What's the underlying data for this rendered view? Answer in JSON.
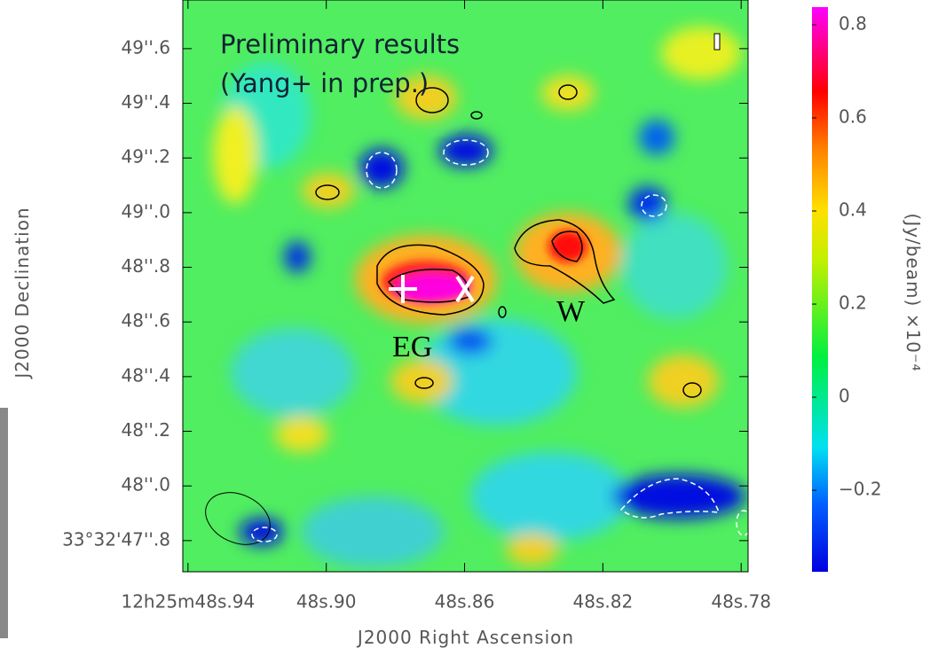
{
  "chart_data": {
    "type": "image-map",
    "xlabel": "J2000 Right Ascension",
    "ylabel": "J2000 Declination",
    "colorbar_label": "(Jy/beam)  ×10⁻⁴",
    "annotations": [
      "Preliminary results",
      "(Yang+ in prep.)",
      "EG",
      "W"
    ],
    "xlim": [
      48.9415,
      48.778
    ],
    "xticks": [
      {
        "value": 48.94,
        "label": "12h25m48s.94"
      },
      {
        "value": 48.9,
        "label": "48s.90"
      },
      {
        "value": 48.86,
        "label": "48s.86"
      },
      {
        "value": 48.82,
        "label": "48s.82"
      },
      {
        "value": 48.78,
        "label": "48s.78"
      }
    ],
    "ylim": [
      47.686,
      49.778
    ],
    "yticks": [
      {
        "value": 47.8,
        "label": "33°32'47''.8"
      },
      {
        "value": 48.0,
        "label": "48''.0"
      },
      {
        "value": 48.2,
        "label": "48''.2"
      },
      {
        "value": 48.4,
        "label": "48''.4"
      },
      {
        "value": 48.6,
        "label": "48''.6"
      },
      {
        "value": 48.8,
        "label": "48''.8"
      },
      {
        "value": 49.0,
        "label": "49''.0"
      },
      {
        "value": 49.2,
        "label": "49''.2"
      },
      {
        "value": 49.4,
        "label": "49''.4"
      },
      {
        "value": 49.6,
        "label": "49''.6"
      }
    ],
    "clim": [
      -0.375,
      0.838
    ],
    "cticks": [
      {
        "value": -0.2,
        "label": "−0.2"
      },
      0,
      0.2,
      0.4,
      0.6,
      0.8
    ]
  }
}
